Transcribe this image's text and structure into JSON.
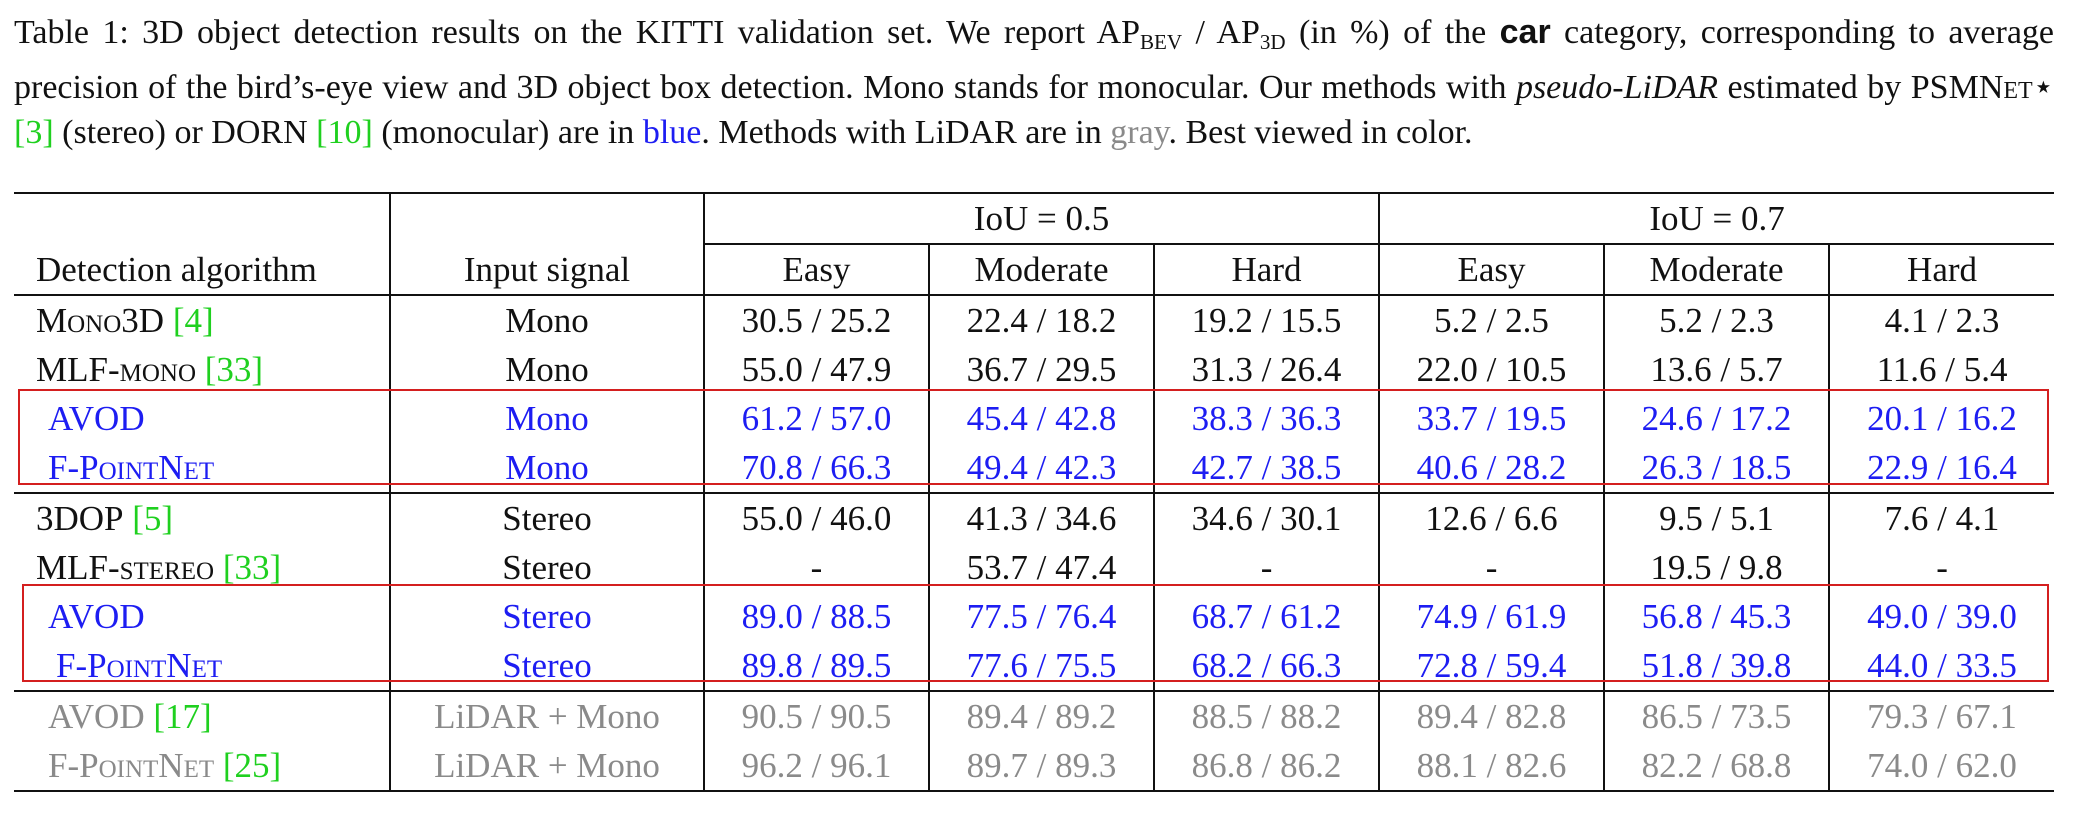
{
  "caption": {
    "label": "Table 1:",
    "t1": " 3D object detection results on the KITTI validation set. We report AP",
    "sub1": "BEV",
    "t2": " / AP",
    "sub2": "3D",
    "t3": " (in %) of the ",
    "bold": "car",
    "t4": " category, corresponding to average precision of the bird’s-eye view and 3D object box detection. Mono stands for monocular. Our methods with ",
    "italic": "pseudo-LiDAR",
    "t5": " estimated by ",
    "psmnet": "PSMNet",
    "star": "⋆",
    "ref3": "[3]",
    "t6": " (stereo) or DORN ",
    "ref10": "[10]",
    "t7": " (monocular) are in ",
    "blue_word": "blue",
    "t8": ". Methods with LiDAR are in ",
    "gray_word": "gray",
    "t9": ". Best viewed in color."
  },
  "table": {
    "header": {
      "alg": "Detection algorithm",
      "input": "Input signal",
      "iou1": "IoU = 0.5",
      "iou2": "IoU = 0.7",
      "easy": "Easy",
      "moderate": "Moderate",
      "hard": "Hard"
    },
    "rows": [
      {
        "name": "Mono3D",
        "ref": "[4]",
        "input": "Mono",
        "v": [
          "30.5 / 25.2",
          "22.4 / 18.2",
          "19.2 / 15.5",
          "5.2 / 2.5",
          "5.2 / 2.3",
          "4.1 / 2.3"
        ]
      },
      {
        "name": "MLF-mono",
        "ref": "[33]",
        "input": "Mono",
        "v": [
          "55.0 / 47.9",
          "36.7 / 29.5",
          "31.3 / 26.4",
          "22.0 / 10.5",
          "13.6 / 5.7",
          "11.6 / 5.4"
        ]
      },
      {
        "name": "AVOD",
        "ref": "",
        "input": "Mono",
        "v": [
          "61.2 / 57.0",
          "45.4 / 42.8",
          "38.3 / 36.3",
          "33.7 / 19.5",
          "24.6 / 17.2",
          "20.1 / 16.2"
        ]
      },
      {
        "name": "F-PointNet",
        "ref": "",
        "input": "Mono",
        "v": [
          "70.8 / 66.3",
          "49.4 / 42.3",
          "42.7 / 38.5",
          "40.6 / 28.2",
          "26.3 / 18.5",
          "22.9 / 16.4"
        ]
      },
      {
        "name": "3DOP",
        "ref": "[5]",
        "input": "Stereo",
        "v": [
          "55.0 / 46.0",
          "41.3 / 34.6",
          "34.6 / 30.1",
          "12.6 / 6.6",
          "9.5 / 5.1",
          "7.6 / 4.1"
        ]
      },
      {
        "name": "MLF-stereo",
        "ref": "[33]",
        "input": "Stereo",
        "v": [
          "-",
          "53.7 / 47.4",
          "-",
          "-",
          "19.5 / 9.8",
          "-"
        ]
      },
      {
        "name": "AVOD",
        "ref": "",
        "input": "Stereo",
        "v": [
          "89.0 / 88.5",
          "77.5 / 76.4",
          "68.7 / 61.2",
          "74.9 / 61.9",
          "56.8 / 45.3",
          "49.0 / 39.0"
        ]
      },
      {
        "name": "F-PointNet",
        "ref": "",
        "input": "Stereo",
        "v": [
          "89.8 / 89.5",
          "77.6 / 75.5",
          "68.2 / 66.3",
          "72.8 / 59.4",
          "51.8 / 39.8",
          "44.0 / 33.5"
        ]
      },
      {
        "name": "AVOD",
        "ref": "[17]",
        "input": "LiDAR + Mono",
        "v": [
          "90.5 / 90.5",
          "89.4 / 89.2",
          "88.5 / 88.2",
          "89.4 / 82.8",
          "86.5 / 73.5",
          "79.3 / 67.1"
        ]
      },
      {
        "name": "F-PointNet",
        "ref": "[25]",
        "input": "LiDAR + Mono",
        "v": [
          "96.2 / 96.1",
          "89.7 / 89.3",
          "86.8 / 86.2",
          "88.1 / 82.6",
          "82.2 / 68.8",
          "74.0 / 62.0"
        ]
      }
    ]
  },
  "colors": {
    "blue": "#1d1df2",
    "gray": "#8a8a8a",
    "green": "#1fd01f",
    "red_box": "#d41f1f"
  }
}
